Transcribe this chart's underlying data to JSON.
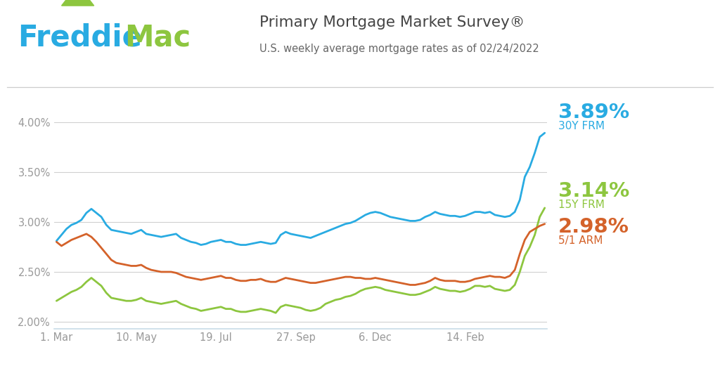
{
  "title": "Primary Mortgage Market Survey®",
  "subtitle": "U.S. weekly average mortgage rates as of 02/24/2022",
  "title_color": "#444444",
  "subtitle_color": "#666666",
  "background_color": "#ffffff",
  "grid_color": "#d0d0d0",
  "ylim": [
    1.93,
    4.18
  ],
  "ytick_vals": [
    2.0,
    2.5,
    3.0,
    3.5,
    4.0
  ],
  "ytick_labels": [
    "2.00%",
    "2.50%",
    "3.00%",
    "3.50%",
    "4.00%"
  ],
  "xtick_labels": [
    "1. Mar",
    "10. May",
    "19. Jul",
    "27. Sep",
    "6. Dec",
    "14. Feb"
  ],
  "xtick_positions": [
    0,
    16,
    32,
    48,
    64,
    82
  ],
  "line_30y_color": "#29abe2",
  "line_15y_color": "#8dc63f",
  "line_arm_color": "#d4622a",
  "label_30y": "3.89%",
  "label_15y": "3.14%",
  "label_arm": "2.98%",
  "label_30y_sub": "30Y FRM",
  "label_15y_sub": "15Y FRM",
  "label_arm_sub": "5/1 ARM",
  "freddie_blue": "#29abe2",
  "freddie_green": "#8dc63f",
  "data_30y": [
    2.81,
    2.87,
    2.93,
    2.97,
    2.99,
    3.02,
    3.09,
    3.13,
    3.09,
    3.05,
    2.97,
    2.92,
    2.91,
    2.9,
    2.89,
    2.88,
    2.9,
    2.92,
    2.88,
    2.87,
    2.86,
    2.85,
    2.86,
    2.87,
    2.88,
    2.84,
    2.82,
    2.8,
    2.79,
    2.77,
    2.78,
    2.8,
    2.81,
    2.82,
    2.8,
    2.8,
    2.78,
    2.77,
    2.77,
    2.78,
    2.79,
    2.8,
    2.79,
    2.78,
    2.79,
    2.87,
    2.9,
    2.88,
    2.87,
    2.86,
    2.85,
    2.84,
    2.86,
    2.88,
    2.9,
    2.92,
    2.94,
    2.96,
    2.98,
    2.99,
    3.01,
    3.04,
    3.07,
    3.09,
    3.1,
    3.09,
    3.07,
    3.05,
    3.04,
    3.03,
    3.02,
    3.01,
    3.01,
    3.02,
    3.05,
    3.07,
    3.1,
    3.08,
    3.07,
    3.06,
    3.06,
    3.05,
    3.06,
    3.08,
    3.1,
    3.1,
    3.09,
    3.1,
    3.07,
    3.06,
    3.05,
    3.06,
    3.1,
    3.22,
    3.45,
    3.55,
    3.69,
    3.85,
    3.89
  ],
  "data_15y": [
    2.21,
    2.24,
    2.27,
    2.3,
    2.32,
    2.35,
    2.4,
    2.44,
    2.4,
    2.36,
    2.29,
    2.24,
    2.23,
    2.22,
    2.21,
    2.21,
    2.22,
    2.24,
    2.21,
    2.2,
    2.19,
    2.18,
    2.19,
    2.2,
    2.21,
    2.18,
    2.16,
    2.14,
    2.13,
    2.11,
    2.12,
    2.13,
    2.14,
    2.15,
    2.13,
    2.13,
    2.11,
    2.1,
    2.1,
    2.11,
    2.12,
    2.13,
    2.12,
    2.11,
    2.09,
    2.15,
    2.17,
    2.16,
    2.15,
    2.14,
    2.12,
    2.11,
    2.12,
    2.14,
    2.18,
    2.2,
    2.22,
    2.23,
    2.25,
    2.26,
    2.28,
    2.31,
    2.33,
    2.34,
    2.35,
    2.34,
    2.32,
    2.31,
    2.3,
    2.29,
    2.28,
    2.27,
    2.27,
    2.28,
    2.3,
    2.32,
    2.35,
    2.33,
    2.32,
    2.31,
    2.31,
    2.3,
    2.31,
    2.33,
    2.36,
    2.36,
    2.35,
    2.36,
    2.33,
    2.32,
    2.31,
    2.32,
    2.37,
    2.5,
    2.66,
    2.75,
    2.87,
    3.05,
    3.14
  ],
  "data_arm": [
    2.8,
    2.76,
    2.79,
    2.82,
    2.84,
    2.86,
    2.88,
    2.85,
    2.8,
    2.74,
    2.68,
    2.62,
    2.59,
    2.58,
    2.57,
    2.56,
    2.56,
    2.57,
    2.54,
    2.52,
    2.51,
    2.5,
    2.5,
    2.5,
    2.49,
    2.47,
    2.45,
    2.44,
    2.43,
    2.42,
    2.43,
    2.44,
    2.45,
    2.46,
    2.44,
    2.44,
    2.42,
    2.41,
    2.41,
    2.42,
    2.42,
    2.43,
    2.41,
    2.4,
    2.4,
    2.42,
    2.44,
    2.43,
    2.42,
    2.41,
    2.4,
    2.39,
    2.39,
    2.4,
    2.41,
    2.42,
    2.43,
    2.44,
    2.45,
    2.45,
    2.44,
    2.44,
    2.43,
    2.43,
    2.44,
    2.43,
    2.42,
    2.41,
    2.4,
    2.39,
    2.38,
    2.37,
    2.37,
    2.38,
    2.39,
    2.41,
    2.44,
    2.42,
    2.41,
    2.41,
    2.41,
    2.4,
    2.4,
    2.41,
    2.43,
    2.44,
    2.45,
    2.46,
    2.45,
    2.45,
    2.44,
    2.46,
    2.52,
    2.68,
    2.82,
    2.9,
    2.93,
    2.96,
    2.98
  ]
}
